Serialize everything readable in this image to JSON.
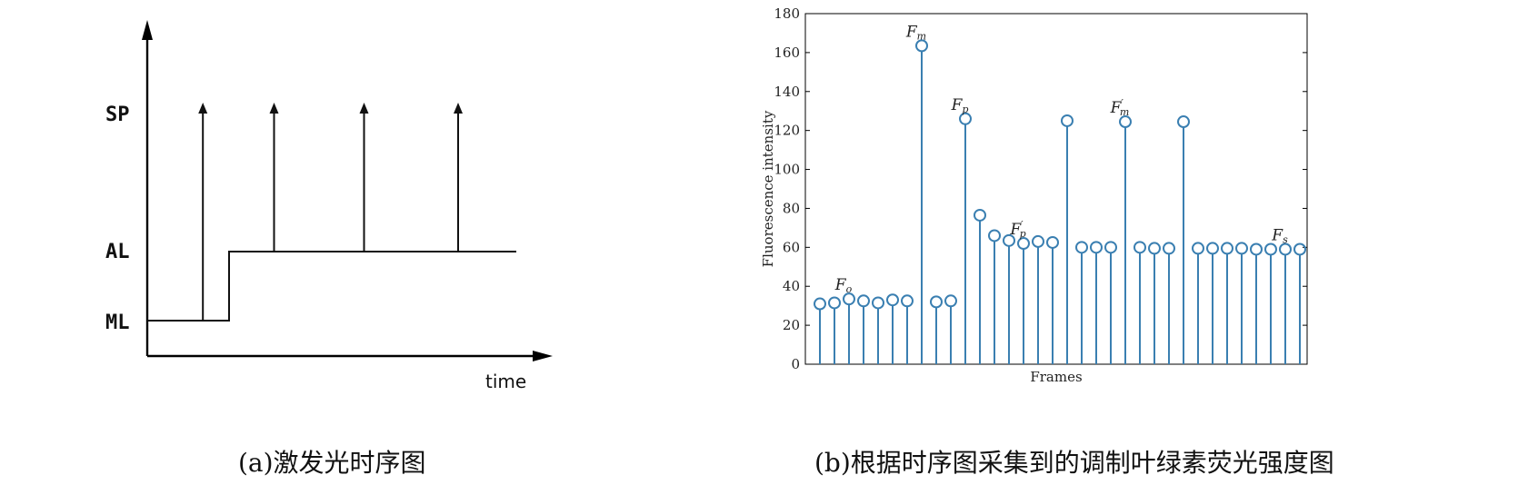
{
  "panel_a": {
    "caption": "(a)激发光时序图",
    "y_levels": [
      "SP",
      "AL",
      "ML"
    ],
    "x_label": "time"
  },
  "panel_b": {
    "caption": "(b)根据时序图采集到的调制叶绿素荧光强度图"
  },
  "chart_data": [
    {
      "type": "timing-diagram",
      "title": "",
      "xlabel": "time",
      "ylabel": "",
      "levels": [
        "ML",
        "AL",
        "SP"
      ],
      "signal": [
        {
          "from": 0,
          "to": 1,
          "level": "ML"
        },
        {
          "from": 1,
          "to": 5,
          "level": "AL"
        }
      ],
      "pulses": [
        {
          "t": 0.68,
          "to_level": "SP"
        },
        {
          "t": 1.55,
          "to_level": "SP"
        },
        {
          "t": 2.65,
          "to_level": "SP"
        },
        {
          "t": 3.8,
          "to_level": "SP"
        }
      ],
      "axes": "arrows, no ticks"
    },
    {
      "type": "stem",
      "title": "",
      "xlabel": "Frames",
      "ylabel": "Fluorescence intensity",
      "ylim": [
        0,
        180
      ],
      "yticks": [
        0,
        20,
        40,
        60,
        80,
        100,
        120,
        140,
        160,
        180
      ],
      "grid": false,
      "marker": "circle",
      "color": "#3a7fb1",
      "x": [
        1,
        2,
        3,
        4,
        5,
        6,
        7,
        8,
        9,
        10,
        11,
        12,
        13,
        14,
        15,
        16,
        17,
        18,
        19,
        20,
        21,
        22,
        23,
        24,
        25,
        26,
        27,
        28,
        29,
        30,
        31,
        32,
        33,
        34
      ],
      "values": [
        31,
        31.5,
        33.5,
        32.5,
        31.5,
        33,
        32.5,
        163.5,
        32,
        32.5,
        126,
        76.5,
        66,
        63.5,
        62,
        63,
        62.5,
        125,
        60,
        60,
        60,
        124.5,
        60,
        59.5,
        59.5,
        124.5,
        59.5,
        59.5,
        59.5,
        59.5,
        59,
        59,
        59,
        59
      ],
      "annotations": [
        {
          "base": "F",
          "sub": "o",
          "prime": "",
          "x": 3
        },
        {
          "base": "F",
          "sub": "m",
          "prime": "",
          "x": 8
        },
        {
          "base": "F",
          "sub": "p",
          "prime": "",
          "x": 11
        },
        {
          "base": "F",
          "sub": "p",
          "prime": "′",
          "x": 15
        },
        {
          "base": "F",
          "sub": "m",
          "prime": "′",
          "x": 22
        },
        {
          "base": "F",
          "sub": "s",
          "prime": "",
          "x": 33
        }
      ]
    }
  ]
}
